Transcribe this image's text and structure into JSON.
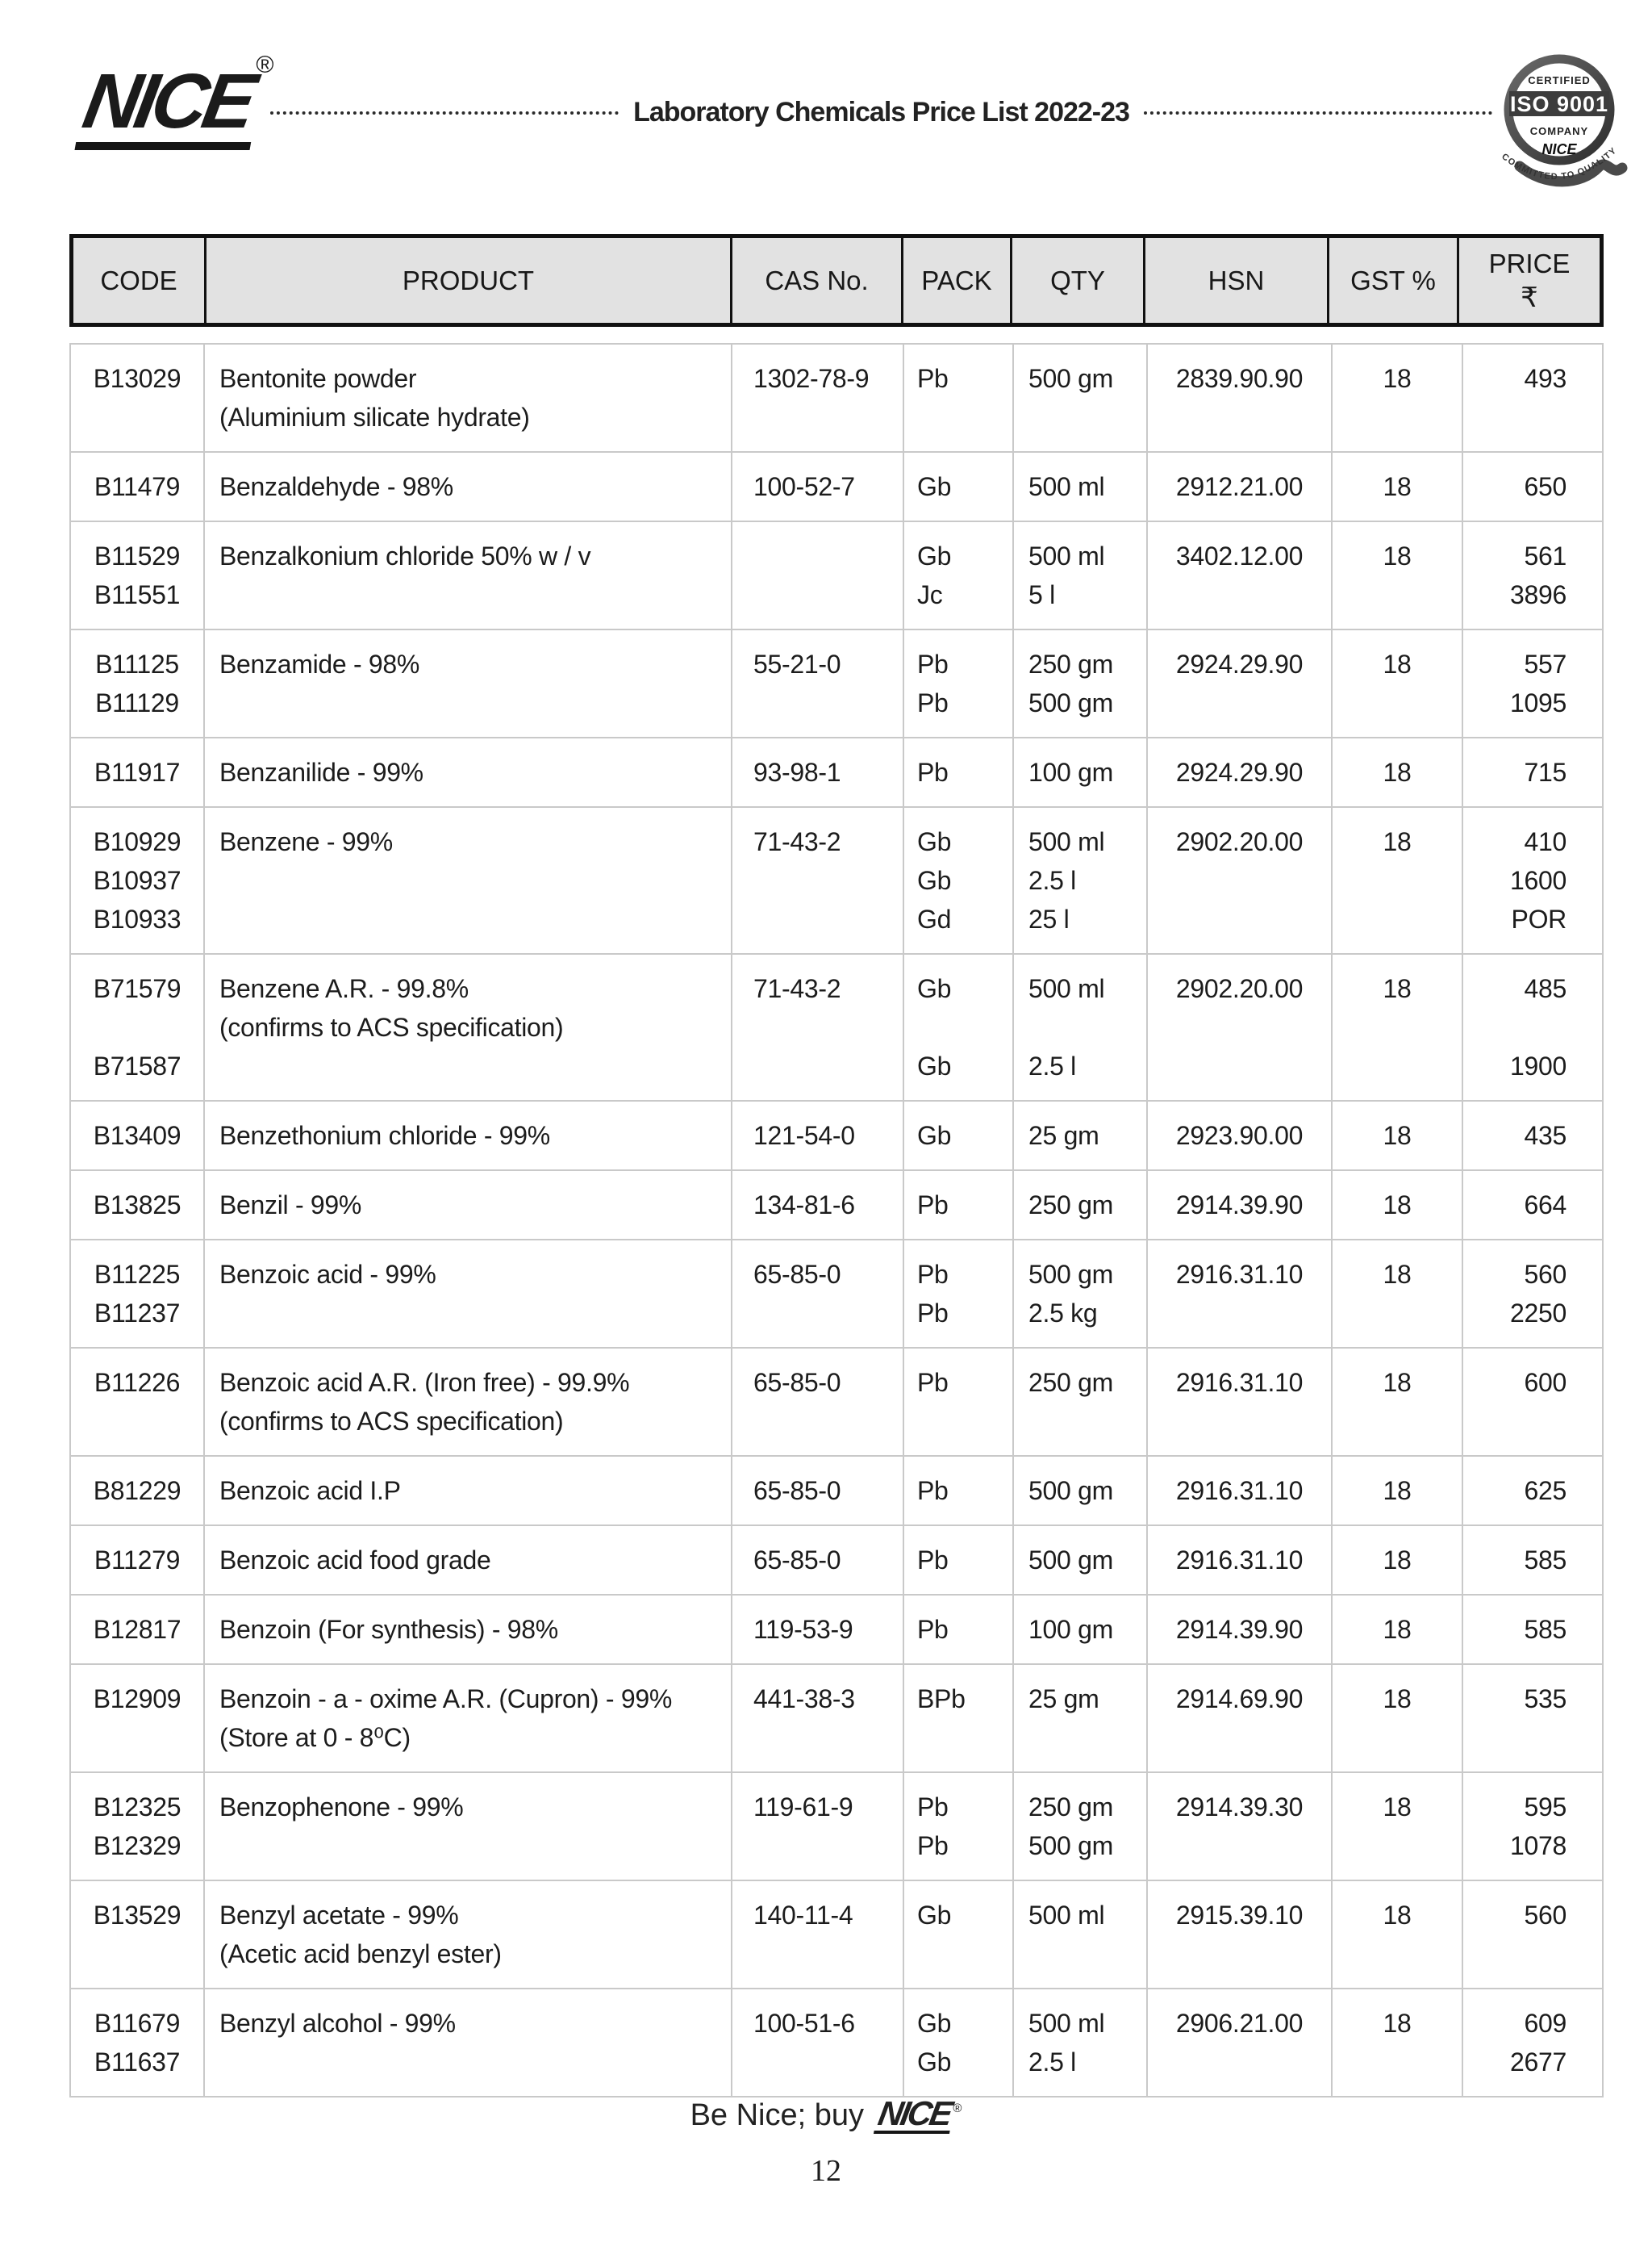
{
  "colors": {
    "page_bg": "#ffffff",
    "text": "#1b1b1b",
    "header_fill": "#e2e2e2",
    "header_border": "#111111",
    "body_border": "#c9c9c9"
  },
  "header": {
    "logo_text": "NICE",
    "registered_mark": "®",
    "title": "Laboratory Chemicals Price List 2022-23",
    "badge": {
      "certified": "CERTIFIED",
      "iso": "ISO 9001",
      "company": "COMPANY",
      "brand": "NICE",
      "tagline": "COMMITTED TO QUALITY"
    }
  },
  "table": {
    "columns": [
      "CODE",
      "PRODUCT",
      "CAS No.",
      "PACK",
      "QTY",
      "HSN",
      "GST %",
      "PRICE"
    ],
    "price_currency": "₹",
    "rows": [
      {
        "codes": [
          "B13029"
        ],
        "product_lines": [
          "Bentonite powder",
          "(Aluminium silicate hydrate)"
        ],
        "cas": "1302-78-9",
        "packs": [
          "Pb"
        ],
        "qtys": [
          "500 gm"
        ],
        "hsn": "2839.90.90",
        "gst": "18",
        "prices": [
          "493"
        ]
      },
      {
        "codes": [
          "B11479"
        ],
        "product_lines": [
          "Benzaldehyde - 98%"
        ],
        "cas": "100-52-7",
        "packs": [
          "Gb"
        ],
        "qtys": [
          "500 ml"
        ],
        "hsn": "2912.21.00",
        "gst": "18",
        "prices": [
          "650"
        ]
      },
      {
        "codes": [
          "B11529",
          "B11551"
        ],
        "product_lines": [
          "Benzalkonium chloride 50% w / v"
        ],
        "cas": "",
        "packs": [
          "Gb",
          "Jc"
        ],
        "qtys": [
          "500 ml",
          "5 l"
        ],
        "hsn": "3402.12.00",
        "gst": "18",
        "prices": [
          "561",
          "3896"
        ]
      },
      {
        "codes": [
          "B11125",
          "B11129"
        ],
        "product_lines": [
          "Benzamide - 98%"
        ],
        "cas": "55-21-0",
        "packs": [
          "Pb",
          "Pb"
        ],
        "qtys": [
          "250 gm",
          "500 gm"
        ],
        "hsn": "2924.29.90",
        "gst": "18",
        "prices": [
          "557",
          "1095"
        ]
      },
      {
        "codes": [
          "B11917"
        ],
        "product_lines": [
          "Benzanilide - 99%"
        ],
        "cas": "93-98-1",
        "packs": [
          "Pb"
        ],
        "qtys": [
          "100 gm"
        ],
        "hsn": "2924.29.90",
        "gst": "18",
        "prices": [
          "715"
        ]
      },
      {
        "codes": [
          "B10929",
          "B10937",
          "B10933"
        ],
        "product_lines": [
          "Benzene - 99%"
        ],
        "cas": "71-43-2",
        "packs": [
          "Gb",
          "Gb",
          "Gd"
        ],
        "qtys": [
          "500 ml",
          "2.5 l",
          "25 l"
        ],
        "hsn": "2902.20.00",
        "gst": "18",
        "prices": [
          "410",
          "1600",
          "POR"
        ]
      },
      {
        "codes": [
          "B71579",
          "",
          "B71587"
        ],
        "product_lines": [
          "Benzene A.R. - 99.8%",
          "(confirms to ACS specification)"
        ],
        "cas": "71-43-2",
        "packs": [
          "Gb",
          "",
          "Gb"
        ],
        "qtys": [
          "500 ml",
          "",
          "2.5 l"
        ],
        "hsn": "2902.20.00",
        "gst": "18",
        "prices": [
          "485",
          "",
          "1900"
        ]
      },
      {
        "codes": [
          "B13409"
        ],
        "product_lines": [
          "Benzethonium chloride - 99%"
        ],
        "cas": "121-54-0",
        "packs": [
          "Gb"
        ],
        "qtys": [
          "25 gm"
        ],
        "hsn": "2923.90.00",
        "gst": "18",
        "prices": [
          "435"
        ]
      },
      {
        "codes": [
          "B13825"
        ],
        "product_lines": [
          "Benzil - 99%"
        ],
        "cas": "134-81-6",
        "packs": [
          "Pb"
        ],
        "qtys": [
          "250 gm"
        ],
        "hsn": "2914.39.90",
        "gst": "18",
        "prices": [
          "664"
        ]
      },
      {
        "codes": [
          "B11225",
          "B11237"
        ],
        "product_lines": [
          "Benzoic acid - 99%"
        ],
        "cas": "65-85-0",
        "packs": [
          "Pb",
          "Pb"
        ],
        "qtys": [
          "500 gm",
          "2.5 kg"
        ],
        "hsn": "2916.31.10",
        "gst": "18",
        "prices": [
          "560",
          "2250"
        ]
      },
      {
        "codes": [
          "B11226"
        ],
        "product_lines": [
          "Benzoic acid A.R. (Iron free) - 99.9%",
          "(confirms to ACS specification)"
        ],
        "cas": "65-85-0",
        "packs": [
          "Pb"
        ],
        "qtys": [
          "250 gm"
        ],
        "hsn": "2916.31.10",
        "gst": "18",
        "prices": [
          "600"
        ]
      },
      {
        "codes": [
          "B81229"
        ],
        "product_lines": [
          "Benzoic acid I.P"
        ],
        "cas": "65-85-0",
        "packs": [
          "Pb"
        ],
        "qtys": [
          "500 gm"
        ],
        "hsn": "2916.31.10",
        "gst": "18",
        "prices": [
          "625"
        ]
      },
      {
        "codes": [
          "B11279"
        ],
        "product_lines": [
          "Benzoic acid food grade"
        ],
        "cas": "65-85-0",
        "packs": [
          "Pb"
        ],
        "qtys": [
          "500 gm"
        ],
        "hsn": "2916.31.10",
        "gst": "18",
        "prices": [
          "585"
        ]
      },
      {
        "codes": [
          "B12817"
        ],
        "product_lines": [
          "Benzoin (For synthesis) - 98%"
        ],
        "cas": "119-53-9",
        "packs": [
          "Pb"
        ],
        "qtys": [
          "100 gm"
        ],
        "hsn": "2914.39.90",
        "gst": "18",
        "prices": [
          "585"
        ]
      },
      {
        "codes": [
          "B12909"
        ],
        "product_lines": [
          "Benzoin - a - oxime A.R. (Cupron) - 99%",
          "(Store at 0 - 8⁰C)"
        ],
        "cas": "441-38-3",
        "packs": [
          "BPb"
        ],
        "qtys": [
          "25 gm"
        ],
        "hsn": "2914.69.90",
        "gst": "18",
        "prices": [
          "535"
        ]
      },
      {
        "codes": [
          "B12325",
          "B12329"
        ],
        "product_lines": [
          "Benzophenone - 99%"
        ],
        "cas": "119-61-9",
        "packs": [
          "Pb",
          "Pb"
        ],
        "qtys": [
          "250 gm",
          "500 gm"
        ],
        "hsn": "2914.39.30",
        "gst": "18",
        "prices": [
          "595",
          "1078"
        ]
      },
      {
        "codes": [
          "B13529"
        ],
        "product_lines": [
          "Benzyl acetate - 99%",
          "(Acetic acid benzyl ester)"
        ],
        "cas": "140-11-4",
        "packs": [
          "Gb"
        ],
        "qtys": [
          "500 ml"
        ],
        "hsn": "2915.39.10",
        "gst": "18",
        "prices": [
          "560"
        ]
      },
      {
        "codes": [
          "B11679",
          "B11637"
        ],
        "product_lines": [
          "Benzyl alcohol - 99%"
        ],
        "cas": "100-51-6",
        "packs": [
          "Gb",
          "Gb"
        ],
        "qtys": [
          "500 ml",
          "2.5 l"
        ],
        "hsn": "2906.21.00",
        "gst": "18",
        "prices": [
          "609",
          "2677"
        ]
      }
    ]
  },
  "footer": {
    "tagline_prefix": "Be Nice; buy",
    "logo_text": "NICE",
    "registered_mark": "®",
    "page_number": "12"
  }
}
